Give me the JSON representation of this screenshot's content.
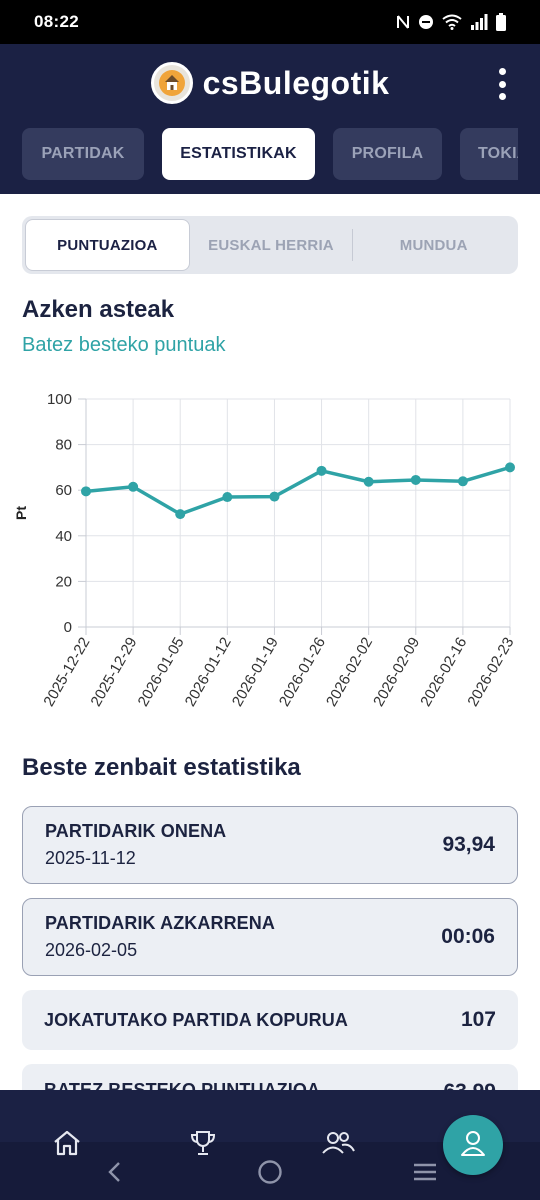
{
  "status_bar": {
    "time": "08:22"
  },
  "header": {
    "title": "csBulegotik"
  },
  "nav_tabs": [
    {
      "label": "PARTIDAK",
      "active": false
    },
    {
      "label": "ESTATISTIKAK",
      "active": true
    },
    {
      "label": "PROFILA",
      "active": false
    },
    {
      "label": "TOKIA",
      "active": false
    }
  ],
  "segments": [
    {
      "label": "PUNTUAZIOA",
      "active": true
    },
    {
      "label": "EUSKAL HERRIA",
      "active": false
    },
    {
      "label": "MUNDUA",
      "active": false
    }
  ],
  "recent": {
    "title": "Azken asteak",
    "subtitle": "Batez besteko puntuak"
  },
  "chart_data": {
    "type": "line",
    "x": [
      "2025-12-22",
      "2025-12-29",
      "2026-01-05",
      "2026-01-12",
      "2026-01-19",
      "2026-01-26",
      "2026-02-02",
      "2026-02-09",
      "2026-02-16",
      "2026-02-23"
    ],
    "series": [
      {
        "values": [
          59.5,
          61.5,
          49.5,
          57.0,
          57.2,
          68.5,
          63.7,
          64.5,
          63.9,
          70.0
        ]
      }
    ],
    "ylabel": "Pt",
    "xlabel": "",
    "ylim": [
      0,
      100
    ],
    "yticks": [
      0,
      20,
      40,
      60,
      80,
      100
    ],
    "grid": true,
    "line_color": "#2fa3a6"
  },
  "other_stats": {
    "title": "Beste zenbait estatistika",
    "cards": [
      {
        "label": "PARTIDARIK ONENA",
        "date": "2025-11-12",
        "value": "93,94"
      },
      {
        "label": "PARTIDARIK AZKARRENA",
        "date": "2026-02-05",
        "value": "00:06"
      },
      {
        "label": "JOKATUTAKO PARTIDA KOPURUA",
        "date": "",
        "value": "107"
      },
      {
        "label": "BATEZ BESTEKO PUNTUAZIOA",
        "date": "",
        "value": "63,99"
      }
    ]
  },
  "bottom_nav": {
    "items": [
      "home-icon",
      "trophy-icon",
      "users-icon",
      "user-icon"
    ]
  },
  "colors": {
    "primary": "#1b2144",
    "accent": "#2fa3a6"
  }
}
